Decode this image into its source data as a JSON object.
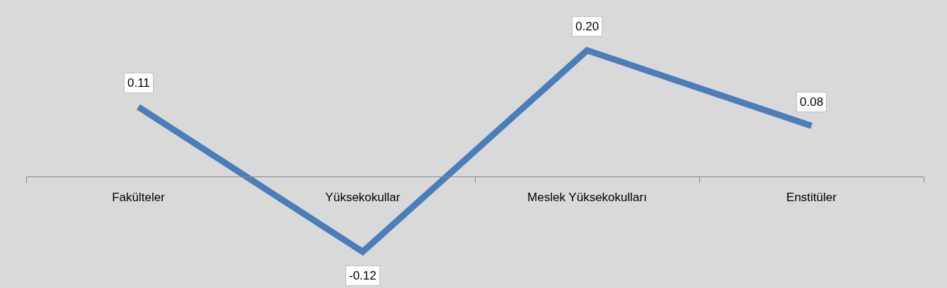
{
  "chart_data": {
    "type": "line",
    "categories": [
      "Fakülteler",
      "Yüksekokullar",
      "Meslek Yüksekokulları",
      "Enstitüler"
    ],
    "series": [
      {
        "color": "#4a7ebb",
        "values": [
          0.11,
          -0.12,
          0.2,
          0.08
        ],
        "value_labels": [
          "0.11",
          "-0.12",
          "0.20",
          "0.08"
        ]
      }
    ],
    "grid": false,
    "marker": "none",
    "line_style": "solid"
  }
}
